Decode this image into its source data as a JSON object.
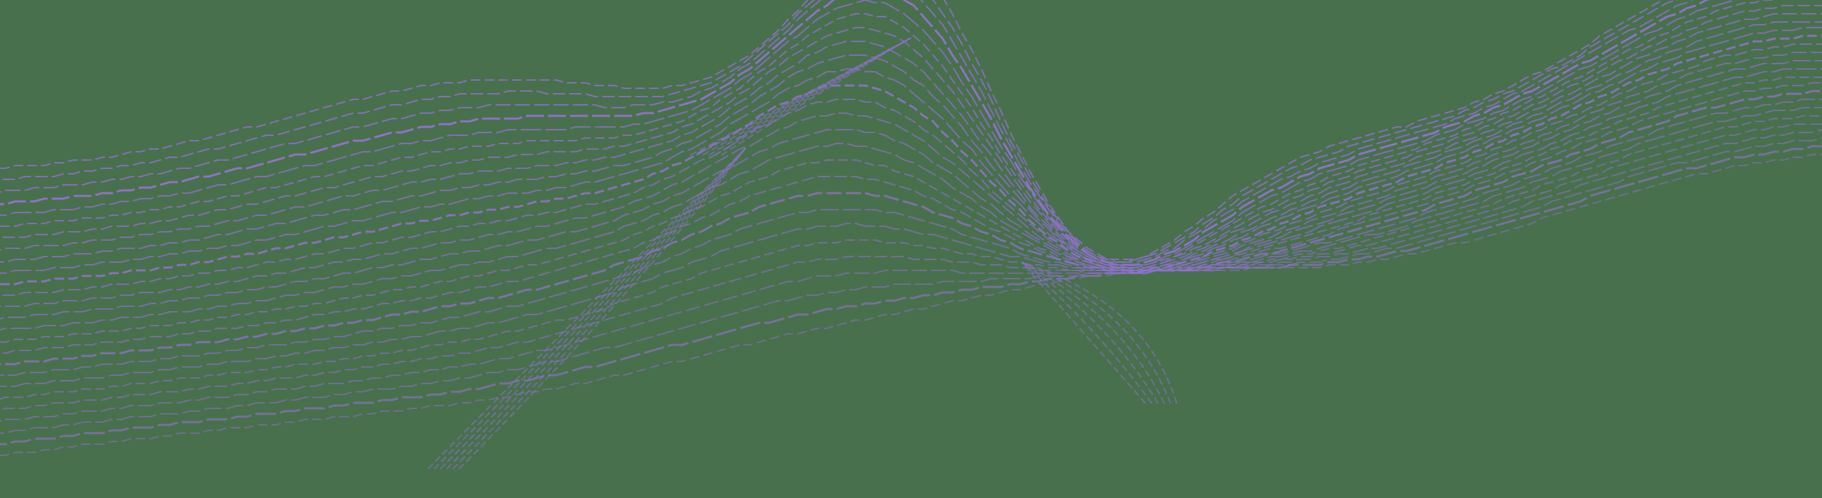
{
  "background_color": "#49704c",
  "wave": {
    "stroke_color": "#8b6fc8",
    "highlight_color": "#9a72dc",
    "line_count": 26
  }
}
